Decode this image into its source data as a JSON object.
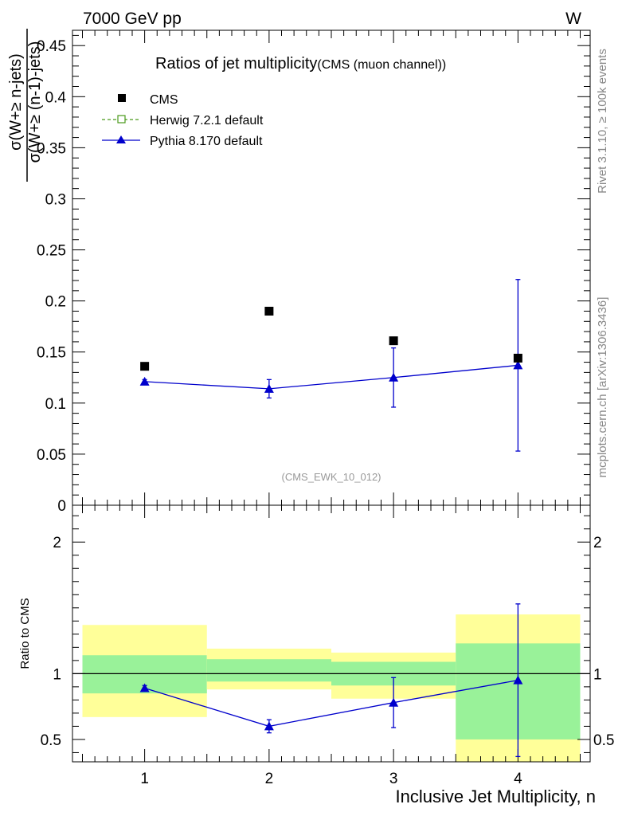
{
  "header": {
    "energy_label": "7000 GeV pp",
    "process_label": "W",
    "side_note_top": "Rivet 3.1.10, ≥ 100k events",
    "side_note_bottom": "mcplots.cern.ch [arXiv:1306.3436]",
    "analysis_tag": "(CMS_EWK_10_012)"
  },
  "chart_data": [
    {
      "panel": "main",
      "type": "scatter",
      "title": "Ratios of jet multiplicity",
      "subtitle": "(CMS (muon channel))",
      "ylabel_numerator": "σ(W+≥ n-jets)",
      "ylabel_denominator": "σ(W+≥ (n-1)-jets)",
      "ylim": [
        0,
        0.465
      ],
      "yticks": [
        0,
        0.05,
        0.1,
        0.15,
        0.2,
        0.25,
        0.3,
        0.35,
        0.4,
        0.45
      ],
      "ytick_labels": [
        "0",
        "0.05",
        "0.1",
        "0.15",
        "0.2",
        "0.25",
        "0.3",
        "0.35",
        "0.4",
        "0.45"
      ],
      "xlim": [
        0.42,
        4.58
      ],
      "x": [
        1,
        2,
        3,
        4
      ],
      "legend": [
        "CMS",
        "Herwig 7.2.1 default",
        "Pythia 8.170 default"
      ],
      "series": [
        {
          "name": "CMS",
          "values": [
            0.136,
            0.19,
            0.161,
            0.144
          ],
          "color": "#000000",
          "marker": "square"
        },
        {
          "name": "Pythia 8.170 default",
          "values": [
            0.121,
            0.114,
            0.125,
            0.137
          ],
          "err_low": [
            0.002,
            0.009,
            0.029,
            0.084
          ],
          "err_high": [
            0.002,
            0.009,
            0.029,
            0.084
          ],
          "color": "#0000cc",
          "marker": "triangle"
        }
      ],
      "legend_styles": {
        "CMS": "#000000",
        "Herwig 7.2.1 default": "#4a9a1a",
        "Pythia 8.170 default": "#0000cc"
      }
    },
    {
      "panel": "ratio",
      "type": "line",
      "ylabel": "Ratio to CMS",
      "xlabel": "Inclusive Jet Multiplicity, n",
      "ylim": [
        0.33,
        2.28
      ],
      "yticks": [
        0.5,
        1,
        2
      ],
      "ytick_labels": [
        "0.5",
        "1",
        "2"
      ],
      "xticks": [
        1,
        2,
        3,
        4
      ],
      "xtick_labels": [
        "1",
        "2",
        "3",
        "4"
      ],
      "reference_line": 1,
      "bands": [
        {
          "x_from": 0.5,
          "x_to": 1.5,
          "stat_low": 0.85,
          "stat_high": 1.14,
          "total_low": 0.67,
          "total_high": 1.37
        },
        {
          "x_from": 1.5,
          "x_to": 2.5,
          "stat_low": 0.94,
          "stat_high": 1.11,
          "total_low": 0.88,
          "total_high": 1.19
        },
        {
          "x_from": 2.5,
          "x_to": 3.5,
          "stat_low": 0.91,
          "stat_high": 1.09,
          "total_low": 0.81,
          "total_high": 1.16
        },
        {
          "x_from": 3.5,
          "x_to": 4.5,
          "stat_low": 0.5,
          "stat_high": 1.23,
          "total_low": 0.33,
          "total_high": 1.45
        }
      ],
      "band_colors": {
        "stat": "#99f299",
        "total": "#ffff99"
      },
      "series": [
        {
          "name": "Pythia 8.170 default",
          "values": [
            0.89,
            0.6,
            0.78,
            0.95
          ],
          "err_low": [
            0.02,
            0.05,
            0.19,
            0.58
          ],
          "err_high": [
            0.02,
            0.05,
            0.19,
            0.58
          ],
          "color": "#0000cc"
        }
      ]
    }
  ]
}
